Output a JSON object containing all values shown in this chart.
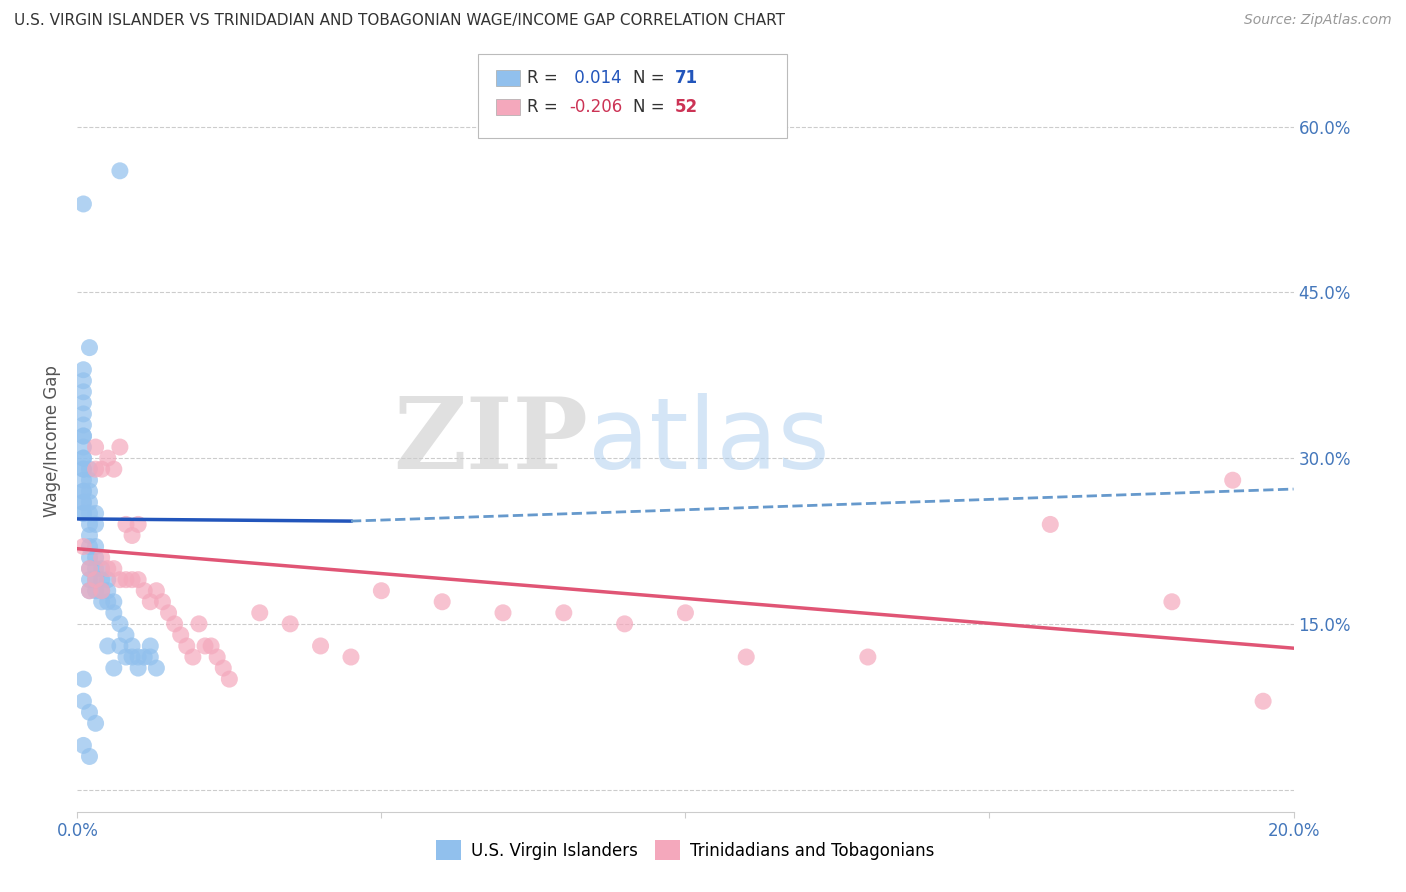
{
  "title": "U.S. VIRGIN ISLANDER VS TRINIDADIAN AND TOBAGONIAN WAGE/INCOME GAP CORRELATION CHART",
  "source": "Source: ZipAtlas.com",
  "ylabel": "Wage/Income Gap",
  "xlim": [
    0.0,
    0.2
  ],
  "ylim": [
    -0.02,
    0.65
  ],
  "yticks": [
    0.0,
    0.15,
    0.3,
    0.45,
    0.6
  ],
  "ytick_labels": [
    "",
    "15.0%",
    "30.0%",
    "45.0%",
    "60.0%"
  ],
  "xticks": [
    0.0,
    0.05,
    0.1,
    0.15,
    0.2
  ],
  "xtick_labels": [
    "0.0%",
    "",
    "",
    "",
    "20.0%"
  ],
  "R_blue": 0.014,
  "N_blue": 71,
  "R_pink": -0.206,
  "N_pink": 52,
  "legend_labels": [
    "U.S. Virgin Islanders",
    "Trinidadians and Tobagonians"
  ],
  "blue_color": "#91C0ED",
  "pink_color": "#F4A8BC",
  "blue_line_solid_color": "#2255BB",
  "blue_line_dash_color": "#6699CC",
  "pink_line_color": "#E05575",
  "watermark_zip": "ZIP",
  "watermark_atlas": "atlas",
  "blue_scatter_x": [
    0.003,
    0.007,
    0.001,
    0.002,
    0.001,
    0.001,
    0.001,
    0.001,
    0.001,
    0.001,
    0.001,
    0.001,
    0.001,
    0.001,
    0.001,
    0.001,
    0.001,
    0.001,
    0.001,
    0.001,
    0.001,
    0.001,
    0.001,
    0.001,
    0.002,
    0.002,
    0.002,
    0.002,
    0.002,
    0.002,
    0.002,
    0.002,
    0.002,
    0.002,
    0.002,
    0.002,
    0.003,
    0.003,
    0.003,
    0.003,
    0.003,
    0.003,
    0.004,
    0.004,
    0.004,
    0.004,
    0.005,
    0.005,
    0.005,
    0.005,
    0.006,
    0.006,
    0.006,
    0.007,
    0.007,
    0.008,
    0.008,
    0.009,
    0.009,
    0.01,
    0.01,
    0.011,
    0.012,
    0.012,
    0.013,
    0.001,
    0.001,
    0.002,
    0.003,
    0.001,
    0.002
  ],
  "blue_scatter_y": [
    0.25,
    0.56,
    0.53,
    0.4,
    0.38,
    0.37,
    0.36,
    0.35,
    0.34,
    0.33,
    0.32,
    0.32,
    0.31,
    0.3,
    0.3,
    0.29,
    0.29,
    0.28,
    0.27,
    0.27,
    0.26,
    0.26,
    0.25,
    0.25,
    0.29,
    0.28,
    0.27,
    0.26,
    0.25,
    0.24,
    0.23,
    0.22,
    0.21,
    0.2,
    0.19,
    0.18,
    0.24,
    0.22,
    0.21,
    0.2,
    0.19,
    0.18,
    0.2,
    0.19,
    0.18,
    0.17,
    0.19,
    0.18,
    0.17,
    0.13,
    0.17,
    0.16,
    0.11,
    0.15,
    0.13,
    0.14,
    0.12,
    0.13,
    0.12,
    0.12,
    0.11,
    0.12,
    0.13,
    0.12,
    0.11,
    0.1,
    0.08,
    0.07,
    0.06,
    0.04,
    0.03
  ],
  "pink_scatter_x": [
    0.001,
    0.002,
    0.002,
    0.003,
    0.003,
    0.003,
    0.004,
    0.004,
    0.004,
    0.005,
    0.005,
    0.006,
    0.006,
    0.007,
    0.007,
    0.008,
    0.008,
    0.009,
    0.009,
    0.01,
    0.01,
    0.011,
    0.012,
    0.013,
    0.014,
    0.015,
    0.016,
    0.017,
    0.018,
    0.019,
    0.02,
    0.021,
    0.022,
    0.023,
    0.024,
    0.025,
    0.03,
    0.035,
    0.04,
    0.045,
    0.05,
    0.06,
    0.07,
    0.08,
    0.09,
    0.1,
    0.11,
    0.13,
    0.16,
    0.18,
    0.19,
    0.195
  ],
  "pink_scatter_y": [
    0.22,
    0.2,
    0.18,
    0.31,
    0.29,
    0.19,
    0.29,
    0.21,
    0.18,
    0.3,
    0.2,
    0.29,
    0.2,
    0.31,
    0.19,
    0.24,
    0.19,
    0.23,
    0.19,
    0.24,
    0.19,
    0.18,
    0.17,
    0.18,
    0.17,
    0.16,
    0.15,
    0.14,
    0.13,
    0.12,
    0.15,
    0.13,
    0.13,
    0.12,
    0.11,
    0.1,
    0.16,
    0.15,
    0.13,
    0.12,
    0.18,
    0.17,
    0.16,
    0.16,
    0.15,
    0.16,
    0.12,
    0.12,
    0.24,
    0.17,
    0.28,
    0.08
  ],
  "blue_line_x0": 0.0,
  "blue_line_y0": 0.245,
  "blue_line_solid_x1": 0.045,
  "blue_line_solid_y1": 0.243,
  "blue_line_dash_x1": 0.2,
  "blue_line_dash_y1": 0.272,
  "pink_line_x0": 0.0,
  "pink_line_y0": 0.218,
  "pink_line_x1": 0.2,
  "pink_line_y1": 0.128
}
